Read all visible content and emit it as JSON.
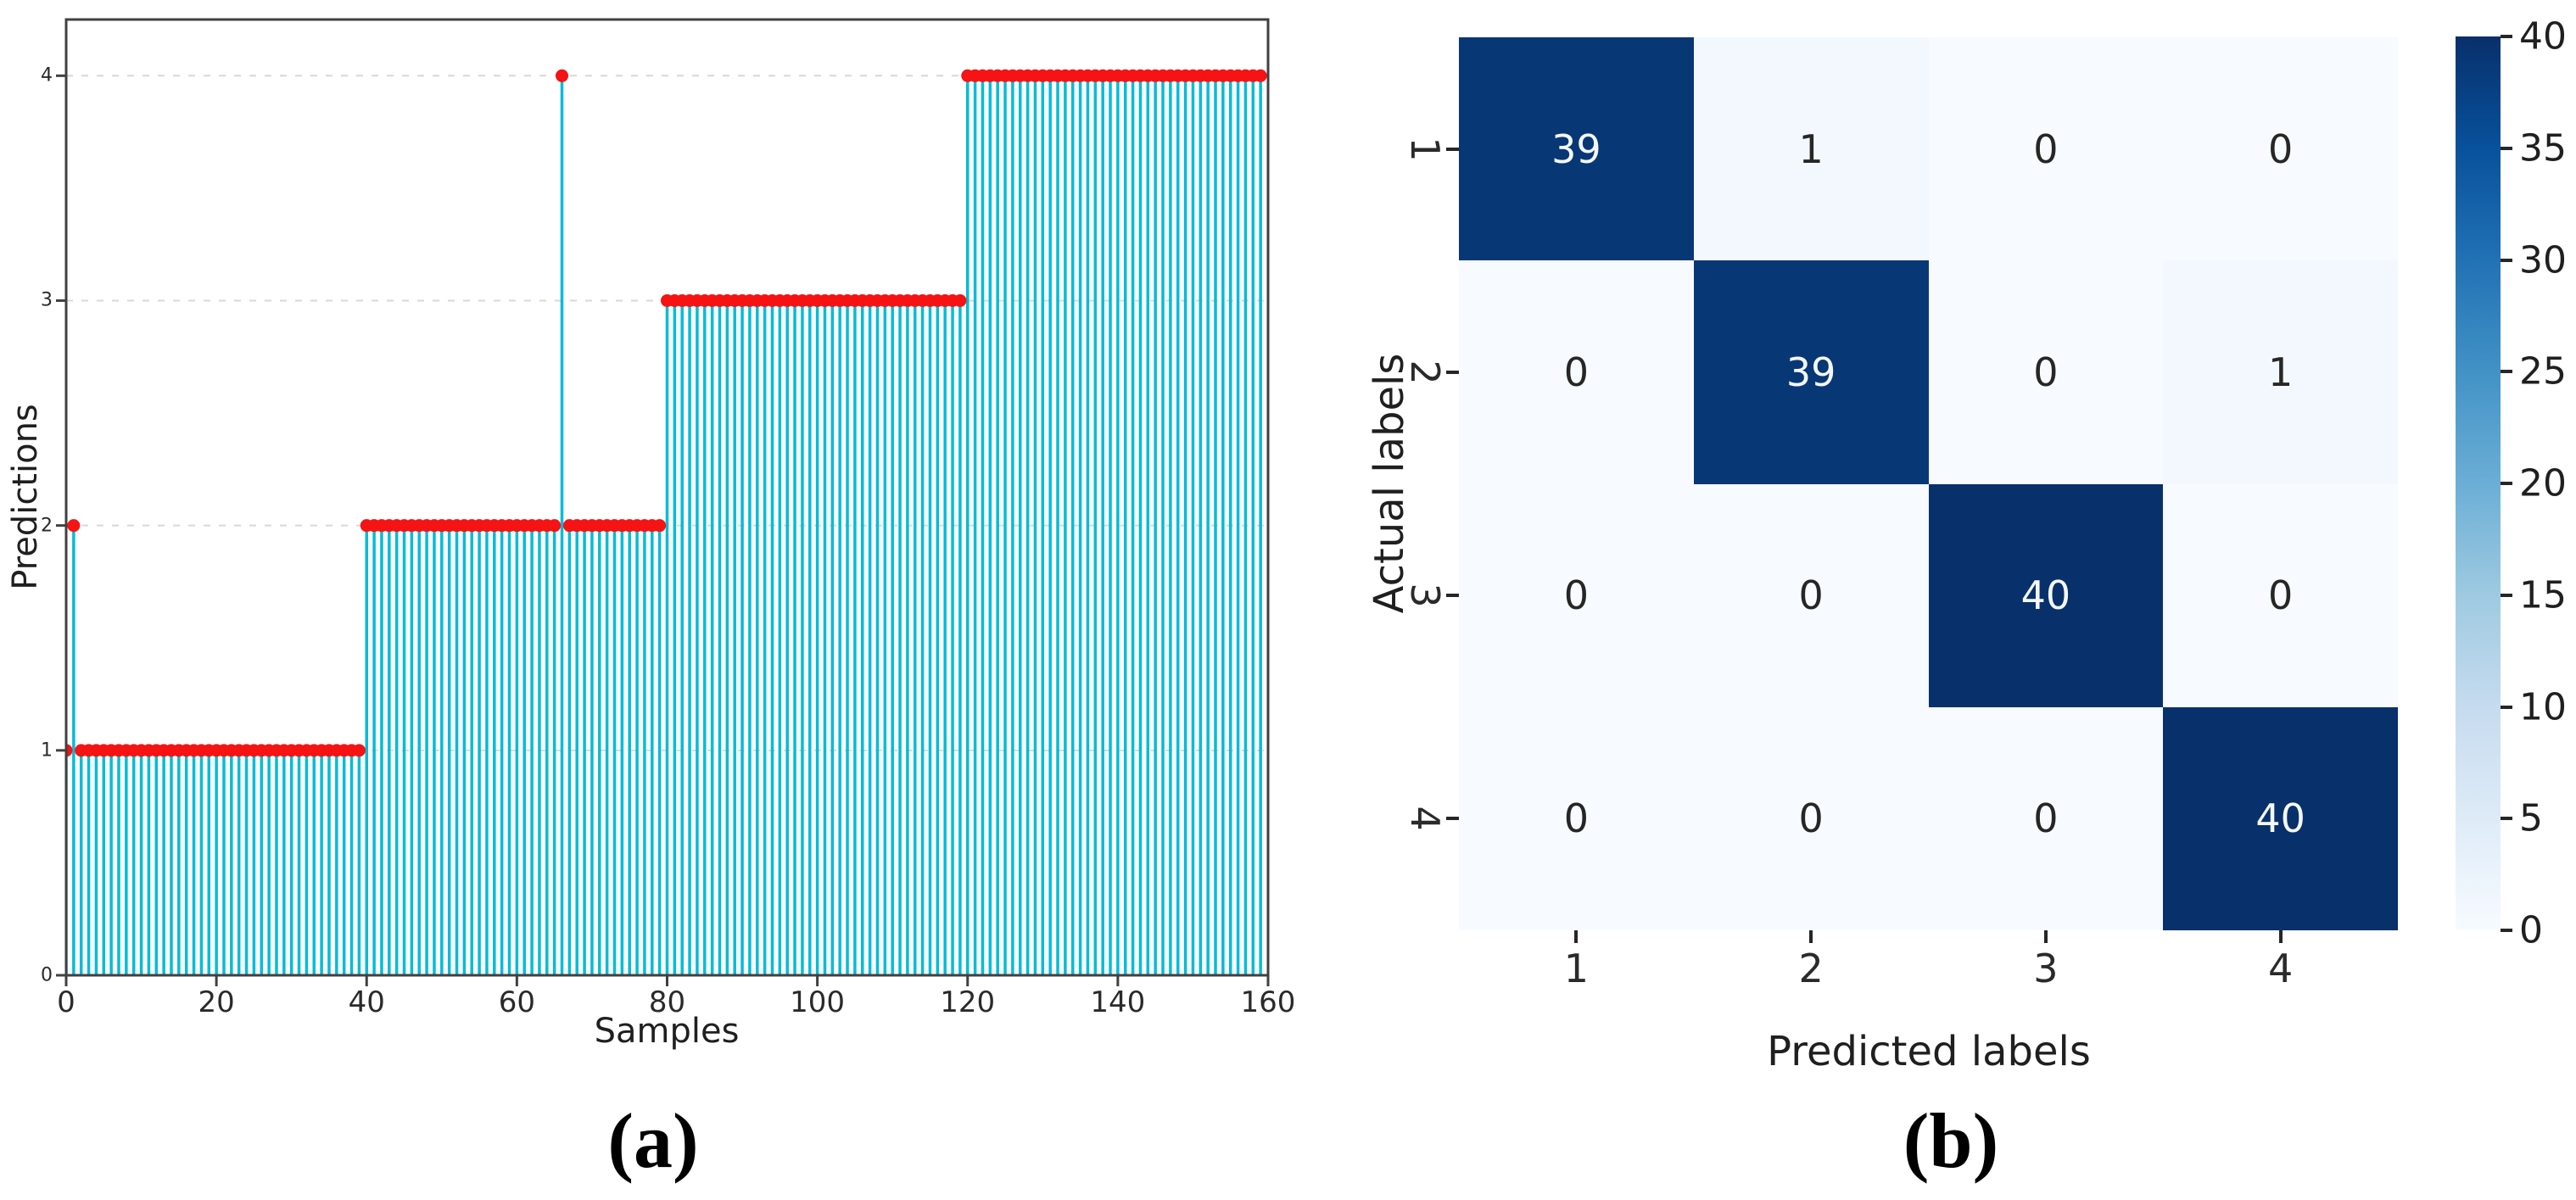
{
  "chart_data": [
    {
      "type": "stem",
      "caption": "(a)",
      "xlabel": "Samples",
      "ylabel": "Predictions",
      "xlim": [
        0,
        160
      ],
      "ylim": [
        0,
        4.25
      ],
      "xticks": [
        0,
        20,
        40,
        60,
        80,
        100,
        120,
        140,
        160
      ],
      "yticks": [
        0,
        1,
        2,
        3,
        4
      ],
      "grid": "horizontal-dashed",
      "n_samples": 160,
      "x_start": 0,
      "value_runs": [
        [
          1,
          1
        ],
        [
          2,
          1
        ],
        [
          1,
          38
        ],
        [
          2,
          26
        ],
        [
          4,
          1
        ],
        [
          2,
          13
        ],
        [
          3,
          40
        ],
        [
          4,
          40
        ]
      ],
      "description": "Predicted class per sample: samples 0-39 class 1 (sample 1 mispredicted as 2), samples 40-79 class 2 (sample 66 mispredicted as 4), samples 80-119 class 3, samples 120-159 class 4",
      "stem_color": "#00bcd9",
      "marker_color": "#f51313",
      "spine_color": "#404040",
      "gridline_color": "#d8d8d8"
    },
    {
      "type": "heatmap",
      "caption": "(b)",
      "xlabel": "Predicted labels",
      "ylabel": "Actual labels",
      "xticklabels": [
        "1",
        "2",
        "3",
        "4"
      ],
      "yticklabels": [
        "1",
        "2",
        "3",
        "4"
      ],
      "matrix": [
        [
          39,
          1,
          0,
          0
        ],
        [
          0,
          39,
          0,
          1
        ],
        [
          0,
          0,
          40,
          0
        ],
        [
          0,
          0,
          0,
          40
        ]
      ],
      "vmin": 0,
      "vmax": 40,
      "colormap": "Blues",
      "colorbar_ticks": [
        0,
        5,
        10,
        15,
        20,
        25,
        30,
        35,
        40
      ],
      "legend_position": "right-colorbar"
    }
  ]
}
